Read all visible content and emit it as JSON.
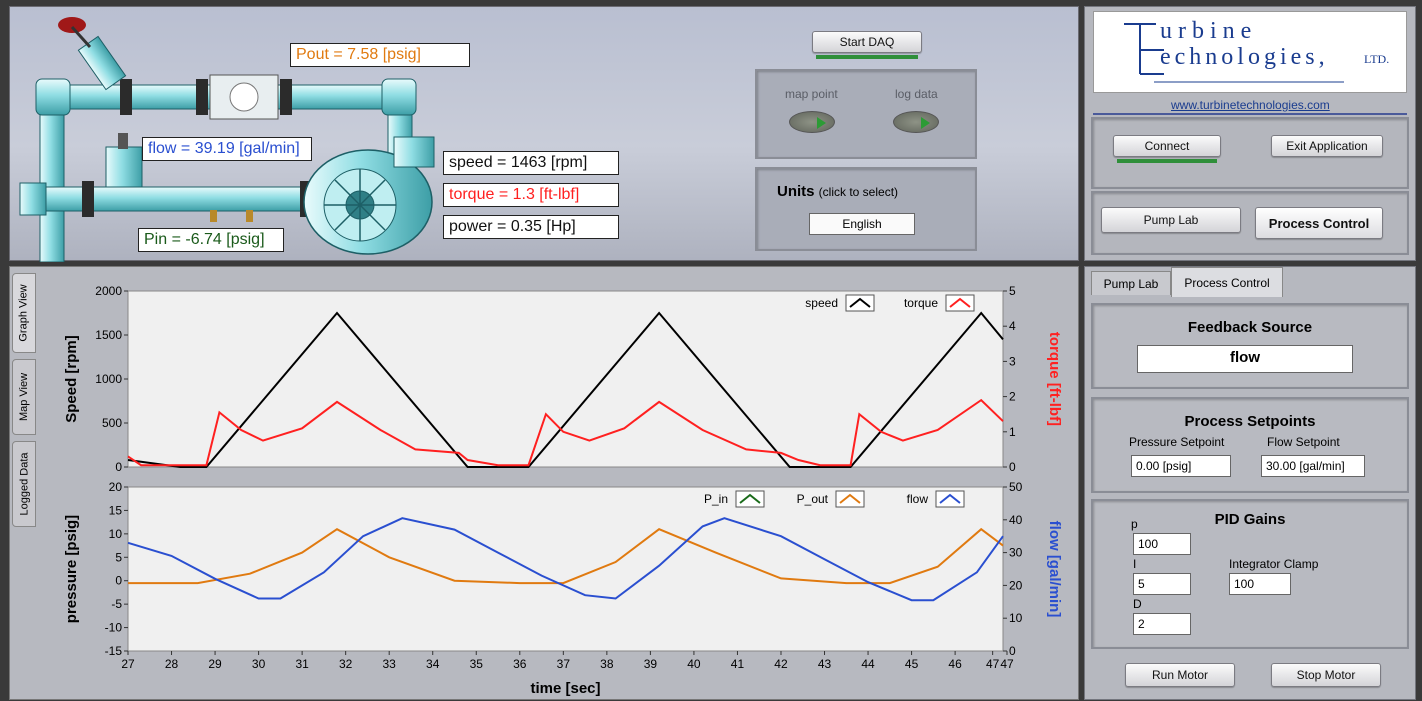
{
  "readouts": {
    "pout": "Pout = 7.58 [psig]",
    "flow": "flow = 39.19 [gal/min]",
    "pin": "Pin =   -6.74 [psig]",
    "speed": "speed = 1463 [rpm]",
    "torque": "torque = 1.3 [ft-lbf]",
    "power": "power = 0.35 [Hp]"
  },
  "daq": {
    "start": "Start DAQ",
    "map_point": "map point",
    "log_data": "log data"
  },
  "units": {
    "title": "Units",
    "hint": "(click to select)",
    "value": "English"
  },
  "brand": {
    "line1": "urbine",
    "line2": "echnologies,",
    "ltd": "LTD.",
    "url": "www.turbinetechnologies.com"
  },
  "buttons": {
    "connect": "Connect",
    "exit": "Exit Application",
    "pump_lab": "Pump Lab",
    "process_control": "Process Control",
    "run": "Run Motor",
    "stop": "Stop Motor"
  },
  "tabs": {
    "pump_lab": "Pump Lab",
    "process_control": "Process Control"
  },
  "side_tabs": [
    "Graph View",
    "Map View",
    "Logged Data"
  ],
  "feedback": {
    "title": "Feedback Source",
    "value": "flow"
  },
  "setpoints": {
    "title": "Process Setpoints",
    "pressure_label": "Pressure Setpoint",
    "pressure_value": "0.00 [psig]",
    "flow_label": "Flow Setpoint",
    "flow_value": "30.00 [gal/min]"
  },
  "pid": {
    "title": "PID Gains",
    "p_label": "p",
    "p_value": "100",
    "i_label": "I",
    "i_value": "5",
    "d_label": "D",
    "d_value": "2",
    "clamp_label": "Integrator Clamp",
    "clamp_value": "100"
  },
  "colors": {
    "speed": "#000000",
    "torque": "#ff2020",
    "p_in": "#1a6b1a",
    "p_out": "#e07a10",
    "flow": "#2a4fd0"
  },
  "chart_data": [
    {
      "type": "line",
      "ylabel": "Speed [rpm]",
      "y2label": "torque [ft-lbf]",
      "ylim": [
        0,
        2000
      ],
      "y2lim": [
        0,
        5
      ],
      "yticks": [
        "2000",
        "1500",
        "1000",
        "500",
        "0"
      ],
      "y2ticks": [
        "5",
        "4",
        "3",
        "2",
        "1",
        "0"
      ],
      "series": [
        {
          "name": "speed",
          "axis": "left",
          "x": [
            27,
            28.2,
            28.8,
            31.8,
            34.8,
            35.5,
            36.2,
            39.2,
            42.2,
            42.9,
            43.6,
            46.6,
            47.1
          ],
          "y": [
            80,
            0,
            0,
            1750,
            0,
            0,
            0,
            1750,
            0,
            0,
            0,
            1750,
            1450
          ]
        },
        {
          "name": "torque",
          "axis": "right",
          "x": [
            27,
            27.3,
            28.8,
            29.1,
            29.6,
            30.1,
            31,
            31.8,
            32.8,
            33.6,
            34.6,
            34.8,
            35.5,
            36.2,
            36.6,
            37,
            37.6,
            38.4,
            39.2,
            40.2,
            41.2,
            42,
            42.4,
            42.9,
            43.6,
            43.8,
            44.3,
            44.8,
            45.6,
            46.6,
            47.1
          ],
          "y": [
            0.3,
            0.05,
            0.05,
            1.55,
            1.05,
            0.75,
            1.1,
            1.85,
            1.05,
            0.5,
            0.4,
            0.2,
            0.05,
            0.05,
            1.5,
            1.0,
            0.75,
            1.1,
            1.85,
            1.05,
            0.5,
            0.4,
            0.2,
            0.05,
            0.05,
            1.5,
            1.0,
            0.75,
            1.05,
            1.9,
            1.3
          ]
        }
      ]
    },
    {
      "type": "line",
      "ylabel": "pressure [psig]",
      "y2label": "flow [gal/min]",
      "xlabel": "time [sec]",
      "ylim": [
        -15,
        20
      ],
      "y2lim": [
        0,
        50
      ],
      "yticks": [
        "20",
        "15",
        "10",
        "5",
        "0",
        "-5",
        "-10",
        "-15"
      ],
      "y2ticks": [
        "50",
        "40",
        "30",
        "20",
        "10",
        "0"
      ],
      "xticks": [
        "27",
        "28",
        "29",
        "30",
        "31",
        "32",
        "33",
        "34",
        "35",
        "36",
        "37",
        "38",
        "39",
        "40",
        "41",
        "42",
        "43",
        "44",
        "45",
        "46",
        "47",
        "47"
      ],
      "series": [
        {
          "name": "P_in",
          "axis": "left",
          "x": [],
          "y": []
        },
        {
          "name": "P_out",
          "axis": "left",
          "x": [
            27,
            28.6,
            29.8,
            31,
            31.8,
            33,
            34.5,
            36,
            37,
            38.2,
            39.2,
            40.5,
            42,
            43.5,
            44.5,
            45.6,
            46.6,
            47.1
          ],
          "y": [
            -0.5,
            -0.5,
            1.5,
            6,
            11,
            5,
            0,
            -0.5,
            -0.5,
            4,
            11,
            6,
            0.5,
            -0.5,
            -0.5,
            3,
            11,
            7.5
          ]
        },
        {
          "name": "flow",
          "axis": "right",
          "x": [
            27,
            28,
            29,
            30,
            30.5,
            31.5,
            32.4,
            33.3,
            34.5,
            35.5,
            36.5,
            37.5,
            38.2,
            39.2,
            40.2,
            40.7,
            42,
            43,
            44,
            45,
            45.5,
            46.5,
            47.1
          ],
          "y": [
            33,
            29,
            22,
            16,
            16,
            24,
            35,
            40.5,
            37,
            30,
            23,
            17,
            16,
            26,
            38,
            40.5,
            35,
            28,
            21,
            15.5,
            15.5,
            24,
            35
          ]
        }
      ]
    }
  ]
}
